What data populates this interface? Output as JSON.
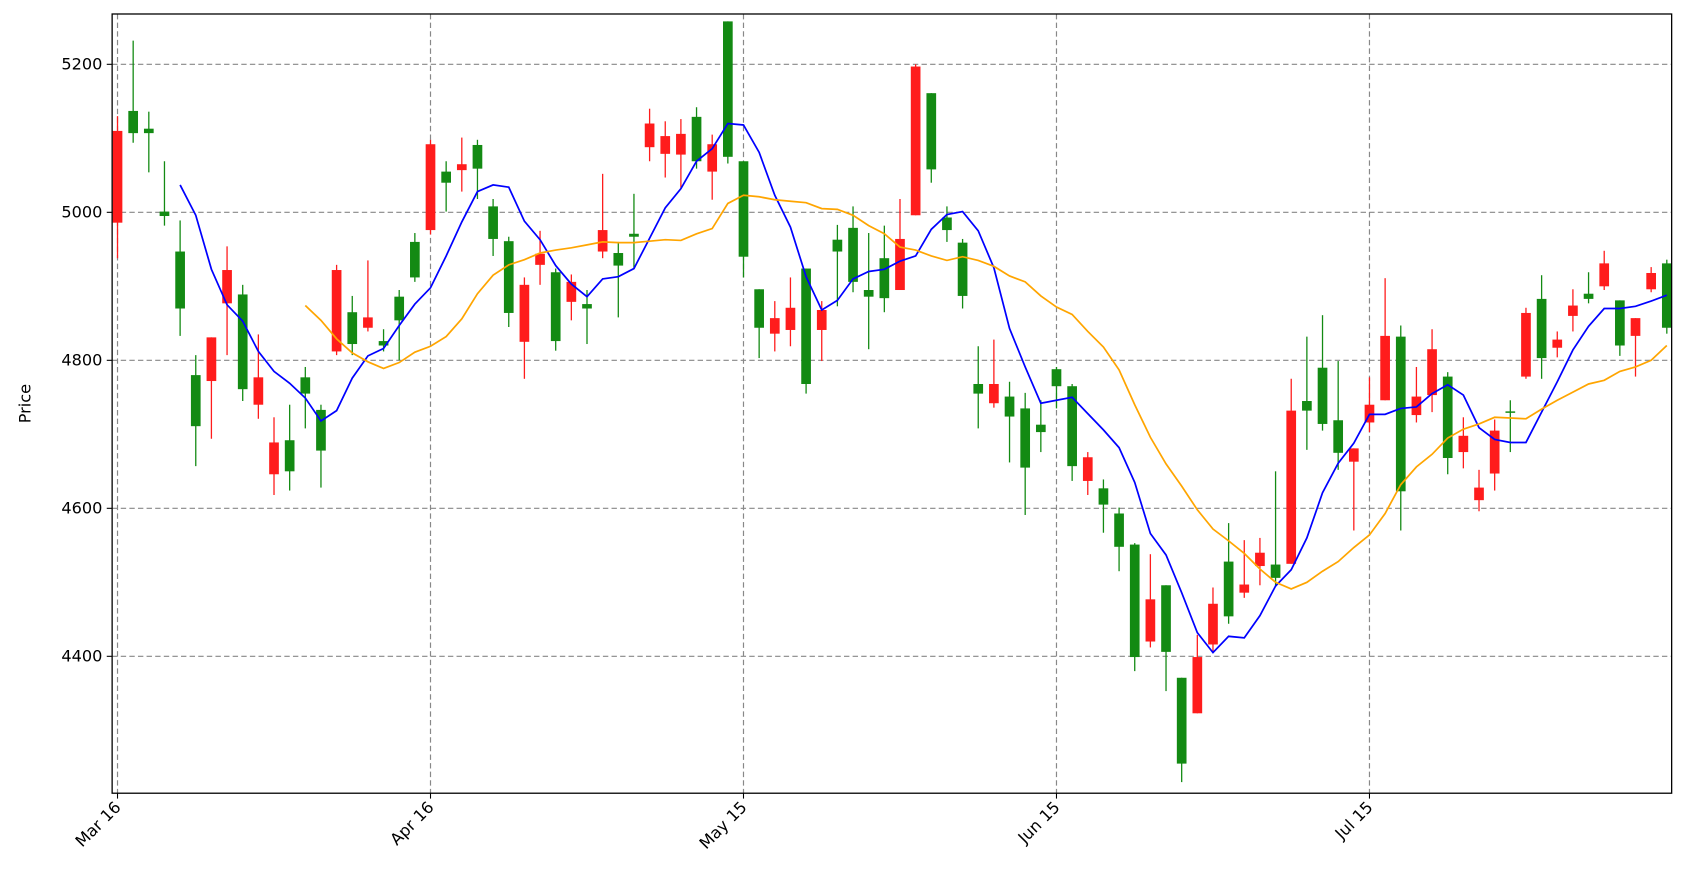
{
  "chart_data": {
    "type": "candlestick",
    "y_label": "Price",
    "categories": [
      "Mar 16",
      null,
      null,
      null,
      null,
      null,
      null,
      null,
      null,
      null,
      null,
      null,
      null,
      null,
      null,
      null,
      null,
      null,
      null,
      null,
      "Apr 16",
      null,
      null,
      null,
      null,
      null,
      null,
      null,
      null,
      null,
      null,
      null,
      null,
      null,
      null,
      null,
      null,
      null,
      null,
      null,
      "May 15",
      null,
      null,
      null,
      null,
      null,
      null,
      null,
      null,
      null,
      null,
      null,
      null,
      null,
      null,
      null,
      null,
      null,
      null,
      null,
      "Jun 15",
      null,
      null,
      null,
      null,
      null,
      null,
      null,
      null,
      null,
      null,
      null,
      null,
      null,
      null,
      null,
      null,
      null,
      null,
      null,
      "Jul 15",
      null,
      null,
      null,
      null,
      null,
      null,
      null,
      null,
      null,
      null,
      null,
      null,
      null,
      null,
      null,
      null,
      null,
      null,
      null
    ],
    "open": [
      5110,
      5107,
      5107,
      4995,
      4870,
      4711,
      4831,
      4922,
      4761,
      4777,
      4689,
      4650,
      4755,
      4678,
      4922,
      4822,
      4858,
      4820,
      4854,
      4912,
      5092,
      5040,
      5065,
      5059,
      4964,
      4864,
      4902,
      4944,
      4826,
      4906,
      4870,
      4976,
      4928,
      4967,
      5120,
      5103,
      5106,
      5069,
      5092,
      5075,
      4940,
      4844,
      4857,
      4871,
      4768,
      4868,
      4947,
      4906,
      4886,
      4884,
      4964,
      5197,
      5058,
      4976,
      4887,
      4755,
      4768,
      4724,
      4655,
      4703,
      4765,
      4657,
      4669,
      4605,
      4548,
      4399,
      4477,
      4406,
      4255,
      4399,
      4471,
      4454,
      4497,
      4540,
      4506,
      4732,
      4732,
      4714,
      4675,
      4681,
      4740,
      4833,
      4623,
      4751,
      4815,
      4668,
      4698,
      4628,
      4705,
      4729,
      4864,
      4803,
      4828,
      4874,
      4883,
      4931,
      4820,
      4857,
      4918,
      4844
    ],
    "high": [
      5130,
      5232,
      5136,
      5069,
      4989,
      4807,
      4831,
      4954,
      4902,
      4835,
      4723,
      4740,
      4791,
      4740,
      4929,
      4887,
      4935,
      4842,
      4895,
      4972,
      5098,
      5069,
      5101,
      5098,
      5018,
      4967,
      4912,
      4975,
      4924,
      4916,
      4895,
      5052,
      4960,
      5025,
      5140,
      5123,
      5126,
      5142,
      5105,
      5258,
      5069,
      4896,
      4880,
      4912,
      4924,
      4880,
      4983,
      5008,
      4972,
      4982,
      5018,
      5200,
      5161,
      5008,
      4964,
      4819,
      4828,
      4771,
      4756,
      4746,
      4791,
      4768,
      4676,
      4639,
      4601,
      4553,
      4538,
      4496,
      4371,
      4429,
      4493,
      4580,
      4557,
      4560,
      4650,
      4775,
      4832,
      4861,
      4799,
      4681,
      4777,
      4911,
      4847,
      4791,
      4842,
      4784,
      4723,
      4652,
      4720,
      4746,
      4871,
      4915,
      4839,
      4896,
      4919,
      4948,
      4881,
      4857,
      4926,
      4936
    ],
    "low": [
      4938,
      5094,
      5054,
      4982,
      4833,
      4657,
      4694,
      4807,
      4745,
      4721,
      4618,
      4624,
      4708,
      4628,
      4807,
      4807,
      4839,
      4812,
      4800,
      4906,
      4970,
      5001,
      5028,
      5018,
      4941,
      4845,
      4775,
      4902,
      4813,
      4854,
      4822,
      4938,
      4858,
      4924,
      5069,
      5047,
      5033,
      5059,
      5017,
      5066,
      4912,
      4803,
      4812,
      4819,
      4755,
      4799,
      4873,
      4892,
      4815,
      4865,
      4895,
      4996,
      5040,
      4960,
      4870,
      4708,
      4736,
      4662,
      4591,
      4676,
      4735,
      4637,
      4618,
      4567,
      4515,
      4380,
      4412,
      4353,
      4230,
      4323,
      4406,
      4444,
      4479,
      4496,
      4494,
      4525,
      4679,
      4705,
      4652,
      4570,
      4703,
      4746,
      4570,
      4716,
      4730,
      4646,
      4654,
      4596,
      4624,
      4676,
      4775,
      4775,
      4804,
      4839,
      4877,
      4895,
      4806,
      4778,
      4892,
      4836
    ],
    "close": [
      4986,
      5137,
      5113,
      5001,
      4947,
      4780,
      4772,
      4877,
      4889,
      4740,
      4646,
      4692,
      4777,
      4733,
      4812,
      4865,
      4844,
      4826,
      4886,
      4960,
      4976,
      5055,
      5057,
      5091,
      5008,
      4961,
      4825,
      4929,
      4919,
      4879,
      4876,
      4947,
      4945,
      4971,
      5088,
      5079,
      5078,
      5129,
      5055,
      5258,
      5069,
      4896,
      4836,
      4841,
      4924,
      4841,
      4963,
      4979,
      4895,
      4938,
      4895,
      4996,
      5161,
      4993,
      4959,
      4768,
      4742,
      4751,
      4735,
      4713,
      4788,
      4765,
      4637,
      4627,
      4593,
      4551,
      4420,
      4496,
      4371,
      4323,
      4416,
      4528,
      4486,
      4522,
      4524,
      4525,
      4745,
      4790,
      4719,
      4663,
      4716,
      4746,
      4832,
      4726,
      4753,
      4778,
      4676,
      4611,
      4647,
      4731,
      4778,
      4883,
      4817,
      4860,
      4890,
      4900,
      4881,
      4833,
      4896,
      4931
    ],
    "up_color": "#138a13",
    "down_color": "#ff1c1c",
    "lines": [
      {
        "color": "#0000ff",
        "values": [
          null,
          null,
          null,
          null,
          5037,
          4996,
          4923,
          4875,
          4853,
          4812,
          4785,
          4769,
          4749,
          4718,
          4732,
          4776,
          4806,
          4816,
          4847,
          4876,
          4898,
          4941,
          4987,
          5028,
          5037,
          5034,
          4988,
          4963,
          4928,
          4903,
          4886,
          4910,
          4913,
          4924,
          4965,
          5006,
          5032,
          5069,
          5086,
          5120,
          5118,
          5081,
          5023,
          4980,
          4913,
          4868,
          4881,
          4910,
          4920,
          4923,
          4934,
          4941,
          4977,
          4997,
          5001,
          4975,
          4925,
          4843,
          4791,
          4742,
          4746,
          4750,
          4728,
          4706,
          4682,
          4635,
          4566,
          4537,
          4486,
          4432,
          4405,
          4427,
          4425,
          4455,
          4495,
          4517,
          4560,
          4621,
          4661,
          4688,
          4727,
          4727,
          4735,
          4737,
          4755,
          4767,
          4753,
          4709,
          4693,
          4689,
          4689,
          4730,
          4771,
          4814,
          4846,
          4870,
          4870,
          4873,
          4880,
          4888
        ]
      },
      {
        "color": "#ffa500",
        "values": [
          null,
          null,
          null,
          null,
          null,
          null,
          null,
          null,
          null,
          null,
          null,
          null,
          4874,
          4854,
          4829,
          4810,
          4798,
          4789,
          4797,
          4811,
          4819,
          4832,
          4856,
          4890,
          4915,
          4929,
          4936,
          4945,
          4949,
          4952,
          4956,
          4960,
          4959,
          4959,
          4961,
          4963,
          4962,
          4971,
          4978,
          5012,
          5023,
          5021,
          5017,
          5015,
          5013,
          5005,
          5004,
          4996,
          4982,
          4971,
          4953,
          4949,
          4941,
          4935,
          4940,
          4935,
          4927,
          4914,
          4906,
          4887,
          4872,
          4862,
          4839,
          4818,
          4787,
          4740,
          4696,
          4660,
          4630,
          4598,
          4572,
          4556,
          4539,
          4518,
          4500,
          4491,
          4500,
          4515,
          4528,
          4547,
          4564,
          4593,
          4632,
          4656,
          4673,
          4695,
          4707,
          4714,
          4723,
          4722,
          4721,
          4734,
          4746,
          4757,
          4768,
          4773,
          4785,
          4791,
          4800,
          4820
        ]
      }
    ],
    "ylim": [
      4215,
      5268
    ],
    "yticks": [
      4400,
      4600,
      4800,
      5000,
      5200
    ],
    "grid": true
  }
}
